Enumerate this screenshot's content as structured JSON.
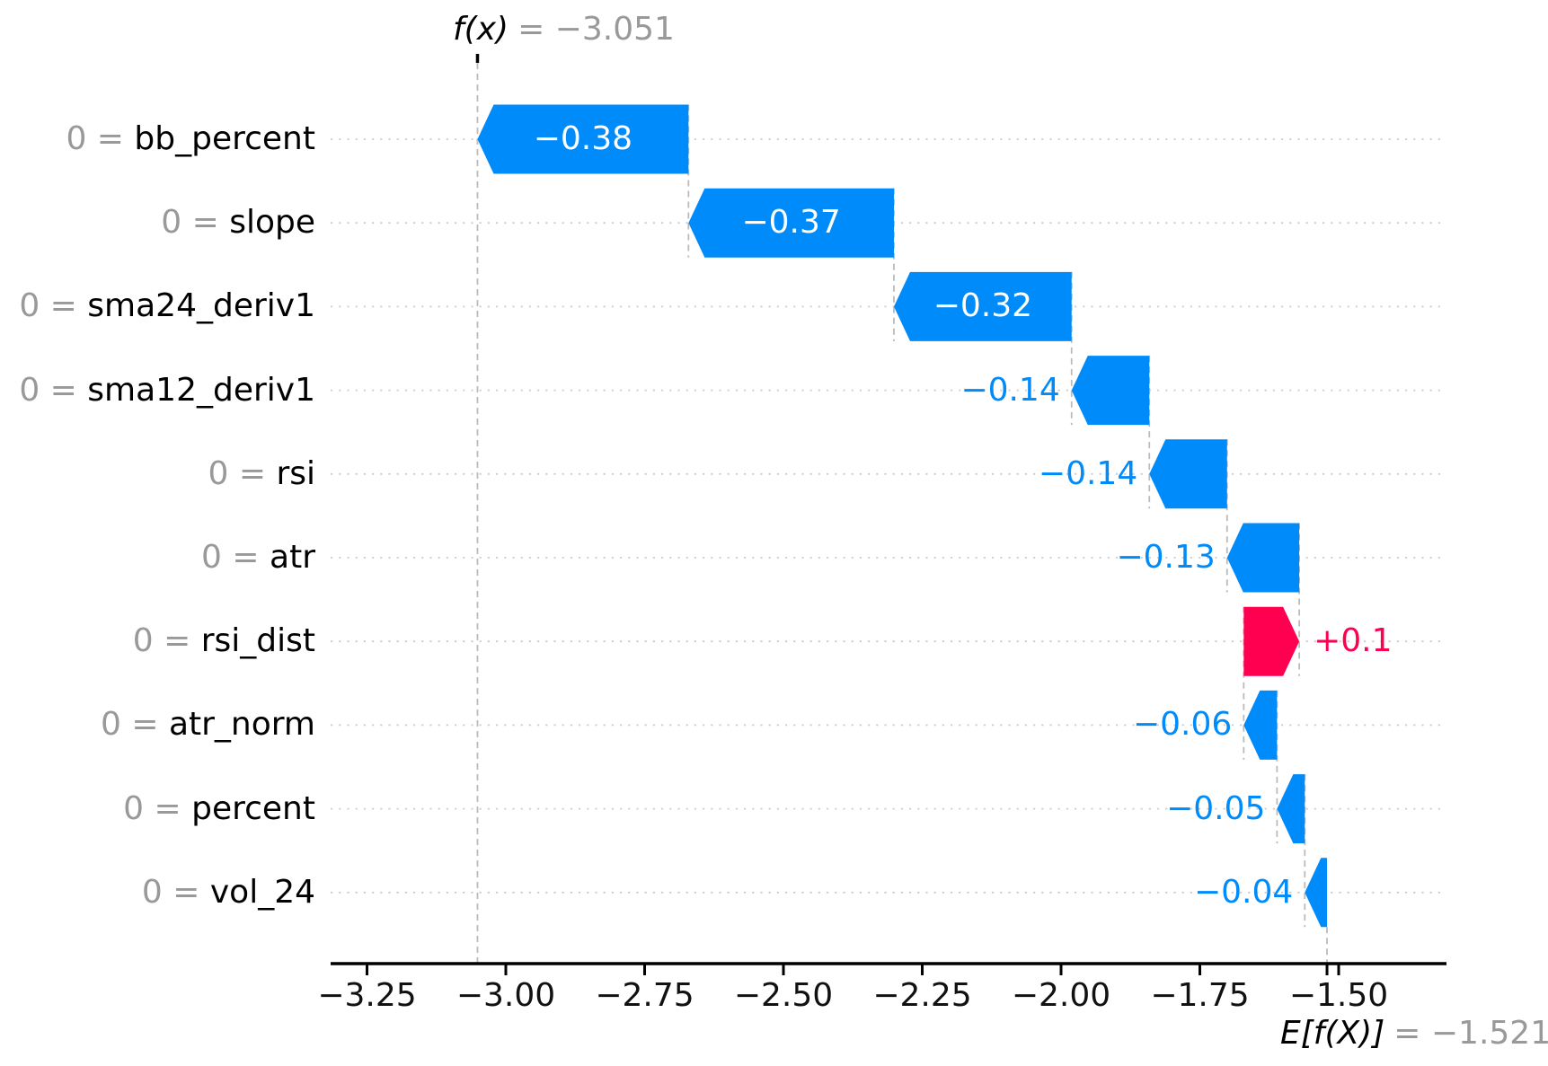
{
  "figure": {
    "background": "#ffffff"
  },
  "title": {
    "fx_label": "f(x)",
    "fx_value_text": "= −3.051"
  },
  "expected_value_label": {
    "label": "E[f(X)]",
    "value_text": "= −1.521"
  },
  "chart_data": {
    "type": "waterfall",
    "style": "shap-waterfall",
    "fx_value": -3.051,
    "base_value": -1.521,
    "features": [
      {
        "name": "bb_percent",
        "data_value": "0",
        "shap": -0.38,
        "label": "−0.38"
      },
      {
        "name": "slope",
        "data_value": "0",
        "shap": -0.37,
        "label": "−0.37"
      },
      {
        "name": "sma24_deriv1",
        "data_value": "0",
        "shap": -0.32,
        "label": "−0.32"
      },
      {
        "name": "sma12_deriv1",
        "data_value": "0",
        "shap": -0.14,
        "label": "−0.14"
      },
      {
        "name": "rsi",
        "data_value": "0",
        "shap": -0.14,
        "label": "−0.14"
      },
      {
        "name": "atr",
        "data_value": "0",
        "shap": -0.13,
        "label": "−0.13"
      },
      {
        "name": "rsi_dist",
        "data_value": "0",
        "shap": 0.1,
        "label": "+0.1"
      },
      {
        "name": "atr_norm",
        "data_value": "0",
        "shap": -0.06,
        "label": "−0.06"
      },
      {
        "name": "percent",
        "data_value": "0",
        "shap": -0.05,
        "label": "−0.05"
      },
      {
        "name": "vol_24",
        "data_value": "0",
        "shap": -0.04,
        "label": "−0.04"
      }
    ],
    "x_axis": {
      "ticks": [
        {
          "value": -3.25,
          "label": "−3.25"
        },
        {
          "value": -3.0,
          "label": "−3.00"
        },
        {
          "value": -2.75,
          "label": "−2.75"
        },
        {
          "value": -2.5,
          "label": "−2.50"
        },
        {
          "value": -2.25,
          "label": "−2.25"
        },
        {
          "value": -2.0,
          "label": "−2.00"
        },
        {
          "value": -1.75,
          "label": "−1.75"
        },
        {
          "value": -1.5,
          "label": "−1.50"
        }
      ],
      "range": [
        -3.35,
        -1.33
      ]
    },
    "legend": null,
    "grid": "dotted-horizontal-per-row",
    "colors": {
      "negative": "#008bfb",
      "positive": "#ff0051",
      "connector": "#bbbbbb",
      "gridline": "#cccccc",
      "muted_text": "#999999",
      "axis_text": "#111111",
      "axis_line": "#000000"
    }
  }
}
